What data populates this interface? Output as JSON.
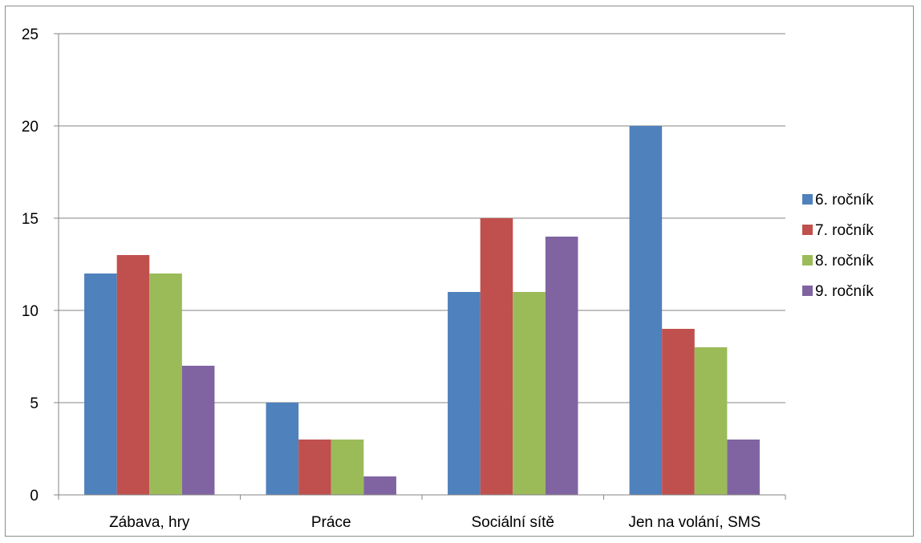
{
  "chart_data": {
    "type": "bar",
    "title": "",
    "xlabel": "",
    "ylabel": "",
    "categories": [
      "Zábava, hry",
      "Práce",
      "Sociální sítě",
      "Jen na volání, SMS"
    ],
    "series": [
      {
        "name": "6. ročník",
        "color": "#4f81bd",
        "values": [
          12,
          5,
          11,
          20
        ]
      },
      {
        "name": "7. ročník",
        "color": "#c0504d",
        "values": [
          13,
          3,
          15,
          9
        ]
      },
      {
        "name": "8. ročník",
        "color": "#9bbb59",
        "values": [
          12,
          3,
          11,
          8
        ]
      },
      {
        "name": "9. ročník",
        "color": "#8064a2",
        "values": [
          7,
          1,
          14,
          3
        ]
      }
    ],
    "ylim": [
      0,
      25
    ],
    "yticks": [
      0,
      5,
      10,
      15,
      20,
      25
    ],
    "grid": true,
    "legend_position": "right"
  }
}
